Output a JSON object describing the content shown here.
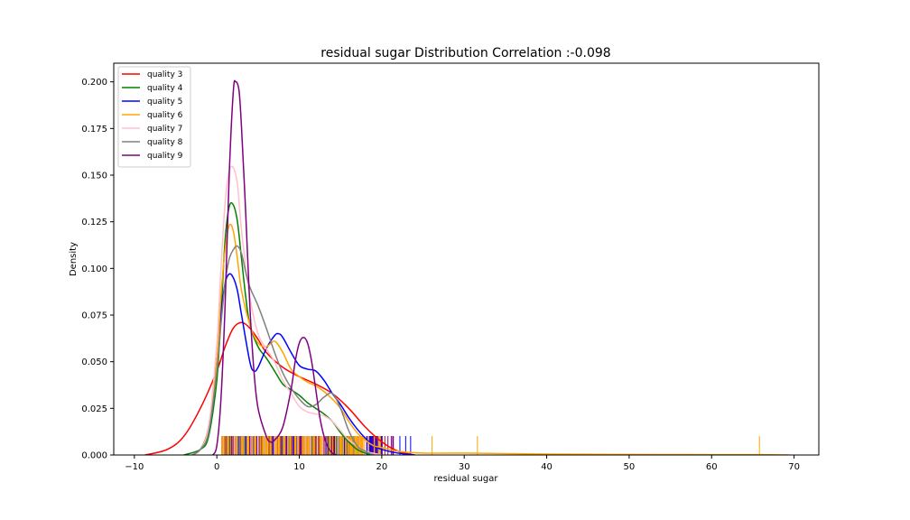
{
  "chart_data": {
    "type": "line",
    "title": "residual sugar Distribution Correlation :-0.098",
    "xlabel": "residual sugar",
    "ylabel": "Density",
    "xlim": [
      -12.5,
      73
    ],
    "ylim": [
      0,
      0.21
    ],
    "xticks": [
      -10,
      0,
      10,
      20,
      30,
      40,
      50,
      60,
      70
    ],
    "yticks": [
      0.0,
      0.025,
      0.05,
      0.075,
      0.1,
      0.125,
      0.15,
      0.175,
      0.2
    ],
    "ytick_labels": [
      "0.000",
      "0.025",
      "0.050",
      "0.075",
      "0.100",
      "0.125",
      "0.150",
      "0.175",
      "0.200"
    ],
    "grid": false,
    "legend_position": "top-left",
    "series": [
      {
        "name": "quality 3",
        "color": "#ff0000",
        "points": [
          [
            -8.7,
            0
          ],
          [
            -6,
            0.003
          ],
          [
            -4,
            0.01
          ],
          [
            -2,
            0.025
          ],
          [
            0,
            0.045
          ],
          [
            1,
            0.058
          ],
          [
            2,
            0.068
          ],
          [
            3,
            0.071
          ],
          [
            4,
            0.068
          ],
          [
            5,
            0.062
          ],
          [
            6,
            0.055
          ],
          [
            8,
            0.047
          ],
          [
            10,
            0.042
          ],
          [
            12,
            0.038
          ],
          [
            14,
            0.033
          ],
          [
            16,
            0.025
          ],
          [
            18,
            0.015
          ],
          [
            20,
            0.007
          ],
          [
            22,
            0.002
          ],
          [
            24,
            0
          ]
        ]
      },
      {
        "name": "quality 4",
        "color": "#008000",
        "points": [
          [
            -4,
            0
          ],
          [
            -2,
            0.003
          ],
          [
            -1,
            0.01
          ],
          [
            0,
            0.04
          ],
          [
            0.5,
            0.075
          ],
          [
            1,
            0.115
          ],
          [
            1.5,
            0.133
          ],
          [
            2,
            0.134
          ],
          [
            2.5,
            0.125
          ],
          [
            3,
            0.105
          ],
          [
            3.5,
            0.085
          ],
          [
            4,
            0.07
          ],
          [
            5,
            0.058
          ],
          [
            6,
            0.052
          ],
          [
            7,
            0.045
          ],
          [
            8,
            0.038
          ],
          [
            9,
            0.035
          ],
          [
            10,
            0.032
          ],
          [
            11,
            0.028
          ],
          [
            12,
            0.025
          ],
          [
            13,
            0.022
          ],
          [
            14,
            0.018
          ],
          [
            15,
            0.012
          ],
          [
            16,
            0.007
          ],
          [
            17,
            0.003
          ],
          [
            18,
            0.001
          ],
          [
            19,
            0
          ]
        ]
      },
      {
        "name": "quality 5",
        "color": "#0000ff",
        "points": [
          [
            -3,
            0
          ],
          [
            -2,
            0.003
          ],
          [
            -1,
            0.015
          ],
          [
            0,
            0.05
          ],
          [
            0.5,
            0.075
          ],
          [
            1,
            0.092
          ],
          [
            1.5,
            0.097
          ],
          [
            2,
            0.095
          ],
          [
            2.5,
            0.088
          ],
          [
            3,
            0.075
          ],
          [
            4,
            0.05
          ],
          [
            4.5,
            0.045
          ],
          [
            5,
            0.047
          ],
          [
            6,
            0.057
          ],
          [
            7,
            0.064
          ],
          [
            7.5,
            0.065
          ],
          [
            8,
            0.063
          ],
          [
            9,
            0.055
          ],
          [
            10,
            0.048
          ],
          [
            11,
            0.046
          ],
          [
            12,
            0.045
          ],
          [
            13,
            0.04
          ],
          [
            14,
            0.033
          ],
          [
            15,
            0.027
          ],
          [
            16,
            0.02
          ],
          [
            17,
            0.014
          ],
          [
            18,
            0.009
          ],
          [
            19,
            0.005
          ],
          [
            20,
            0.003
          ],
          [
            22,
            0.001
          ],
          [
            24,
            0
          ]
        ]
      },
      {
        "name": "quality 6",
        "color": "#ffa500",
        "points": [
          [
            -3,
            0
          ],
          [
            -2,
            0.003
          ],
          [
            -1,
            0.015
          ],
          [
            0,
            0.05
          ],
          [
            0.5,
            0.085
          ],
          [
            1,
            0.11
          ],
          [
            1.5,
            0.123
          ],
          [
            2,
            0.12
          ],
          [
            2.5,
            0.105
          ],
          [
            3,
            0.088
          ],
          [
            4,
            0.07
          ],
          [
            5,
            0.06
          ],
          [
            6,
            0.058
          ],
          [
            7,
            0.061
          ],
          [
            8,
            0.055
          ],
          [
            9,
            0.046
          ],
          [
            10,
            0.042
          ],
          [
            11,
            0.039
          ],
          [
            12,
            0.037
          ],
          [
            13,
            0.034
          ],
          [
            14,
            0.03
          ],
          [
            15,
            0.025
          ],
          [
            16,
            0.018
          ],
          [
            17,
            0.012
          ],
          [
            18,
            0.008
          ],
          [
            19,
            0.005
          ],
          [
            20,
            0.004
          ],
          [
            22,
            0.002
          ],
          [
            25,
            0.001
          ],
          [
            30,
            0.001
          ],
          [
            40,
            0.0005
          ],
          [
            50,
            0.0003
          ],
          [
            60,
            0.0002
          ],
          [
            66,
            0.0002
          ],
          [
            69.5,
            0
          ]
        ]
      },
      {
        "name": "quality 7",
        "color": "#ffc0cb",
        "points": [
          [
            -3,
            0
          ],
          [
            -2,
            0.003
          ],
          [
            -1,
            0.015
          ],
          [
            0,
            0.06
          ],
          [
            0.5,
            0.1
          ],
          [
            1,
            0.135
          ],
          [
            1.5,
            0.152
          ],
          [
            2,
            0.154
          ],
          [
            2.5,
            0.145
          ],
          [
            3,
            0.12
          ],
          [
            4,
            0.085
          ],
          [
            5,
            0.065
          ],
          [
            6,
            0.057
          ],
          [
            7,
            0.05
          ],
          [
            8,
            0.04
          ],
          [
            9,
            0.033
          ],
          [
            10,
            0.026
          ],
          [
            11,
            0.023
          ],
          [
            12,
            0.022
          ],
          [
            13,
            0.021
          ],
          [
            14,
            0.018
          ],
          [
            15,
            0.013
          ],
          [
            16,
            0.008
          ],
          [
            17,
            0.005
          ],
          [
            18,
            0.002
          ],
          [
            20,
            0
          ]
        ]
      },
      {
        "name": "quality 8",
        "color": "#808080",
        "points": [
          [
            -3,
            0
          ],
          [
            -2,
            0.003
          ],
          [
            -1,
            0.012
          ],
          [
            0,
            0.045
          ],
          [
            0.5,
            0.07
          ],
          [
            1,
            0.092
          ],
          [
            1.5,
            0.105
          ],
          [
            2,
            0.11
          ],
          [
            2.5,
            0.112
          ],
          [
            3,
            0.108
          ],
          [
            3.5,
            0.098
          ],
          [
            4,
            0.09
          ],
          [
            5,
            0.08
          ],
          [
            6,
            0.068
          ],
          [
            7,
            0.055
          ],
          [
            8,
            0.044
          ],
          [
            9,
            0.036
          ],
          [
            10,
            0.03
          ],
          [
            11,
            0.026
          ],
          [
            12,
            0.027
          ],
          [
            13,
            0.031
          ],
          [
            14,
            0.033
          ],
          [
            15,
            0.025
          ],
          [
            16,
            0.013
          ],
          [
            17,
            0.005
          ],
          [
            18,
            0.002
          ],
          [
            19,
            0
          ]
        ]
      },
      {
        "name": "quality 9",
        "color": "#800080",
        "points": [
          [
            -0.5,
            0
          ],
          [
            0,
            0.005
          ],
          [
            0.5,
            0.03
          ],
          [
            1,
            0.08
          ],
          [
            1.5,
            0.15
          ],
          [
            2,
            0.195
          ],
          [
            2.3,
            0.2
          ],
          [
            2.7,
            0.195
          ],
          [
            3,
            0.175
          ],
          [
            3.5,
            0.13
          ],
          [
            4,
            0.08
          ],
          [
            4.5,
            0.045
          ],
          [
            5,
            0.025
          ],
          [
            6,
            0.01
          ],
          [
            6.5,
            0.007
          ],
          [
            7,
            0.008
          ],
          [
            8,
            0.015
          ],
          [
            9,
            0.035
          ],
          [
            9.5,
            0.05
          ],
          [
            10,
            0.06
          ],
          [
            10.5,
            0.063
          ],
          [
            11,
            0.06
          ],
          [
            11.5,
            0.05
          ],
          [
            12,
            0.035
          ],
          [
            12.5,
            0.02
          ],
          [
            13,
            0.01
          ],
          [
            13.5,
            0.004
          ],
          [
            14,
            0.001
          ],
          [
            14.5,
            0
          ]
        ]
      }
    ]
  }
}
